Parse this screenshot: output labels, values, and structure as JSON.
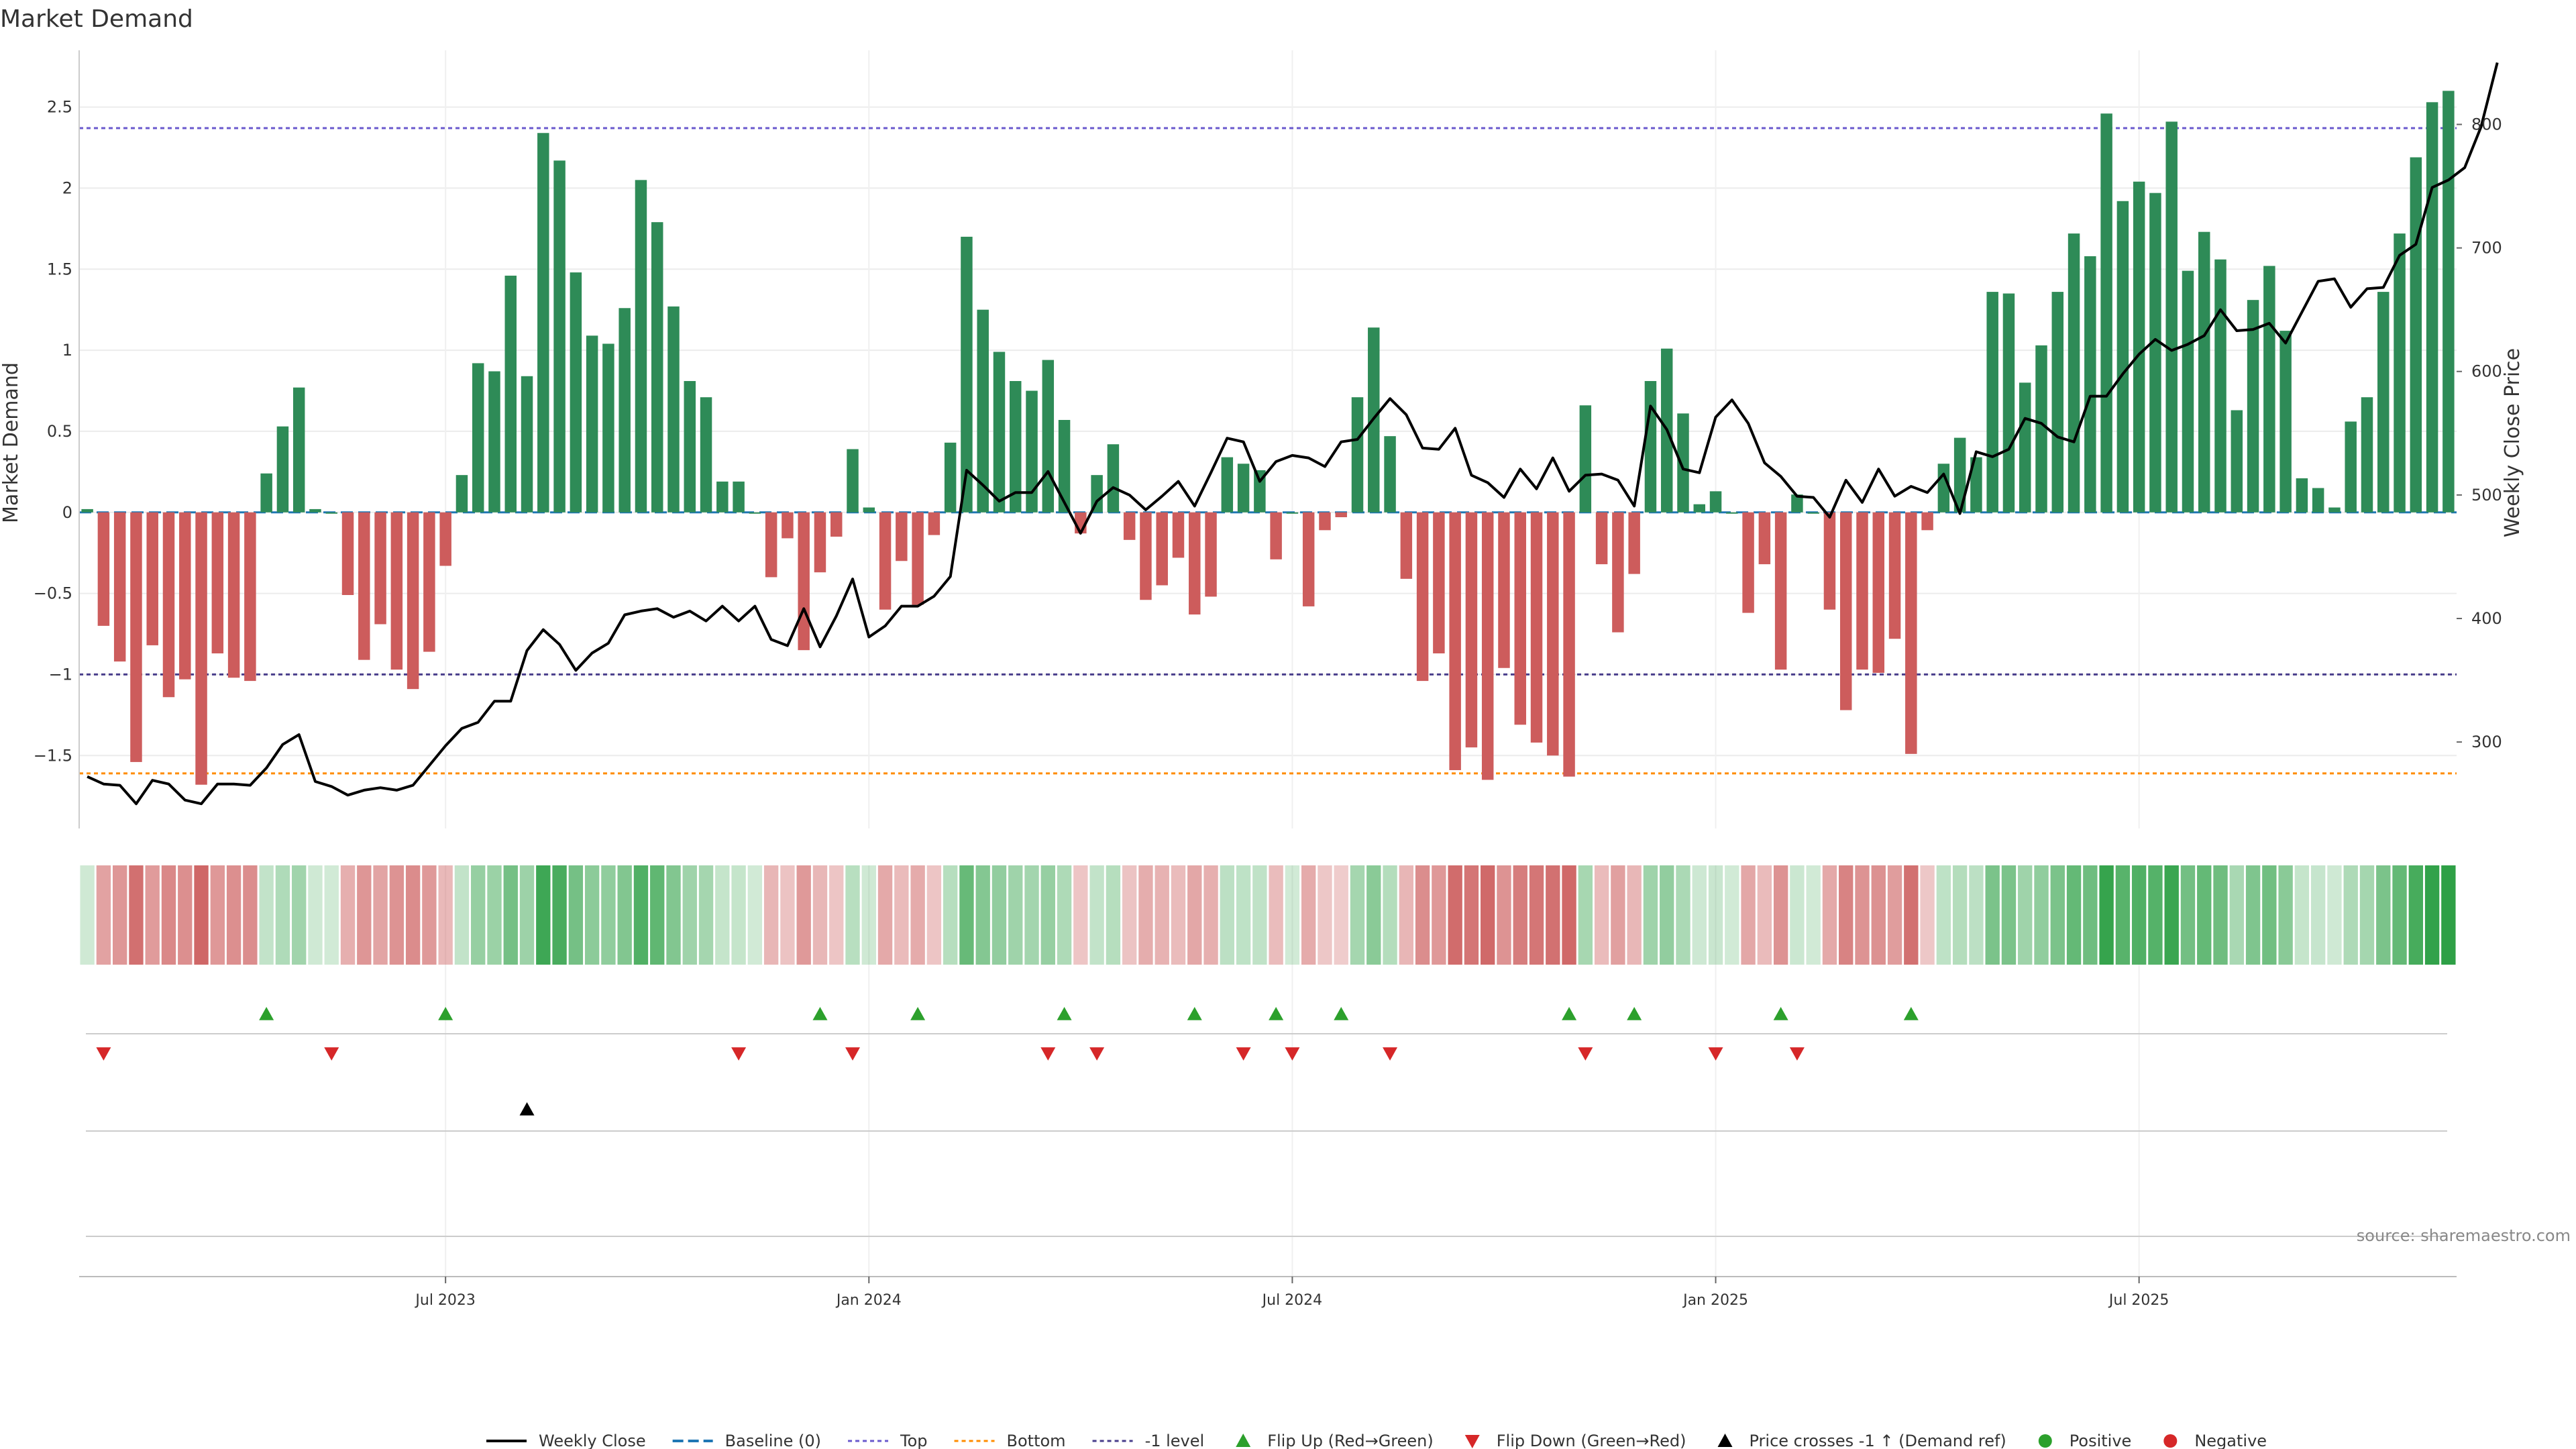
{
  "chart_data": {
    "type": "bar",
    "title": "Market Demand",
    "ylabel": "Market Demand",
    "y2label": "Weekly Close Price",
    "ylim": [
      -1.95,
      2.85
    ],
    "y2lim": [
      230,
      860
    ],
    "yticks": [
      "−1.5",
      "−1",
      "−0.5",
      "0",
      "0.5",
      "1",
      "1.5",
      "2",
      "2.5"
    ],
    "y2ticks": [
      "300",
      "400",
      "500",
      "600",
      "700",
      "800"
    ],
    "xticks": [
      "Jul 2023",
      "Jan 2024",
      "Jul 2024",
      "Jan 2025",
      "Jul 2025"
    ],
    "xtick_index": [
      22,
      48,
      74,
      100,
      126
    ],
    "reference_lines": {
      "top": 2.37,
      "bottom": -1.61,
      "minus_one": -1.0,
      "baseline": 0
    },
    "series": [
      {
        "name": "Market Demand",
        "values": [
          0.02,
          -0.7,
          -0.92,
          -1.54,
          -0.82,
          -1.14,
          -1.03,
          -1.68,
          -0.87,
          -1.02,
          -1.04,
          0.24,
          0.53,
          0.77,
          0.02,
          0.0,
          -0.51,
          -0.91,
          -0.69,
          -0.97,
          -1.09,
          -0.86,
          -0.33,
          0.23,
          0.92,
          0.87,
          1.46,
          0.84,
          2.34,
          2.17,
          1.48,
          1.09,
          1.04,
          1.26,
          2.05,
          1.79,
          1.27,
          0.81,
          0.71,
          0.19,
          0.19,
          0.0,
          -0.4,
          -0.16,
          -0.85,
          -0.37,
          -0.15,
          0.39,
          0.03,
          -0.6,
          -0.3,
          -0.57,
          -0.14,
          0.43,
          1.7,
          1.25,
          0.99,
          0.81,
          0.75,
          0.94,
          0.57,
          -0.13,
          0.23,
          0.42,
          -0.17,
          -0.54,
          -0.45,
          -0.28,
          -0.63,
          -0.52,
          0.34,
          0.3,
          0.26,
          -0.29,
          0.0,
          -0.58,
          -0.11,
          -0.03,
          0.71,
          1.14,
          0.47,
          -0.41,
          -1.04,
          -0.87,
          -1.59,
          -1.45,
          -1.65,
          -0.96,
          -1.31,
          -1.42,
          -1.5,
          -1.63,
          0.66,
          -0.32,
          -0.74,
          -0.38,
          0.81,
          1.01,
          0.61,
          0.05,
          0.13,
          0.0,
          -0.62,
          -0.32,
          -0.97,
          0.11,
          0.0,
          -0.6,
          -1.22,
          -0.97,
          -0.99,
          -0.78,
          -1.49,
          -0.11,
          0.3,
          0.46,
          0.34,
          1.36,
          1.35,
          0.8,
          1.03,
          1.36,
          1.72,
          1.58,
          2.46,
          1.92,
          2.04,
          1.97,
          2.41,
          1.49,
          1.73,
          1.56,
          0.63,
          1.31,
          1.52,
          1.12,
          0.21,
          0.15,
          0.03,
          0.56,
          0.71,
          1.36,
          1.72,
          2.19,
          2.53,
          2.6
        ]
      },
      {
        "name": "Weekly Close",
        "values": [
          272,
          266,
          265,
          250,
          269,
          266,
          253,
          250,
          266,
          266,
          265,
          279,
          298,
          306,
          268,
          264,
          257,
          261,
          263,
          261,
          265,
          281,
          297,
          311,
          316,
          333,
          333,
          374,
          391,
          379,
          358,
          372,
          380,
          403,
          406,
          408,
          401,
          406,
          398,
          410,
          398,
          410,
          383,
          378,
          408,
          377,
          402,
          432,
          385,
          394,
          410,
          410,
          418,
          434,
          520,
          508,
          495,
          502,
          502,
          519,
          494,
          469,
          495,
          506,
          500,
          488,
          499,
          511,
          491,
          518,
          546,
          543,
          511,
          527,
          532,
          530,
          523,
          543,
          545,
          562,
          578,
          565,
          538,
          537,
          554,
          516,
          510,
          498,
          521,
          505,
          530,
          503,
          516,
          517,
          512,
          491,
          572,
          553,
          521,
          518,
          563,
          577,
          558,
          526,
          515,
          499,
          498,
          482,
          512,
          494,
          521,
          499,
          507,
          502,
          517,
          485,
          535,
          531,
          537,
          562,
          558,
          547,
          543,
          580,
          580,
          598,
          614,
          626,
          617,
          622,
          629,
          650,
          633,
          634,
          639,
          623,
          648,
          673,
          675,
          652,
          667,
          668,
          694,
          703,
          749,
          755,
          765,
          798,
          850
        ]
      }
    ],
    "flip_up_index": [
      11,
      22,
      45,
      51,
      60,
      68,
      73,
      77,
      91,
      95,
      104,
      112
    ],
    "flip_down_index": [
      1,
      15,
      40,
      47,
      59,
      62,
      71,
      74,
      80,
      92,
      100,
      105
    ],
    "price_cross_index": [
      27
    ],
    "legend": [
      "Weekly Close",
      "Baseline (0)",
      "Top",
      "Bottom",
      "-1 level",
      "Flip Up (Red→Green)",
      "Flip Down (Green→Red)",
      "Price crosses -1 ↑ (Demand ref)",
      "Positive",
      "Negative"
    ],
    "source": "source: sharemaestro.com",
    "colors": {
      "positive": "#2e8b57",
      "negative": "#cd5c5c",
      "price": "#000000",
      "baseline": "#1f77b4",
      "top": "#6a5acd",
      "bottom": "#ff8c00",
      "minus_one": "#483d8b",
      "flip_up": "#2ca02c",
      "flip_down": "#d62728",
      "positive_dot": "#2ca02c",
      "negative_dot": "#d62728"
    }
  }
}
